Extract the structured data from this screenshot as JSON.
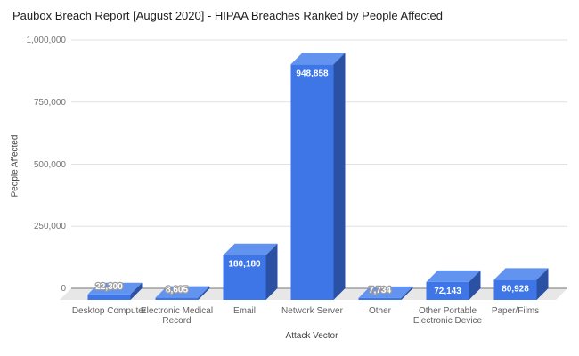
{
  "title": "Paubox Breach Report [August 2020] - HIPAA Breaches Ranked by People Affected",
  "chart_data": {
    "type": "bar",
    "style": "3d-column",
    "title": "Paubox Breach Report [August 2020] - HIPAA Breaches Ranked by People Affected",
    "xlabel": "Attack Vector",
    "ylabel": "People Affected",
    "categories": [
      "Desktop Computer",
      "Electronic Medical Record",
      "Email",
      "Network Server",
      "Other",
      "Other Portable Electronic Device",
      "Paper/Films"
    ],
    "values": [
      22300,
      8605,
      180180,
      948858,
      7734,
      72143,
      80928
    ],
    "value_labels": [
      "22,300",
      "8,605",
      "180,180",
      "948,858",
      "7,734",
      "72,143",
      "80,928"
    ],
    "ylim": [
      0,
      1000000
    ],
    "y_ticks": [
      0,
      250000,
      500000,
      750000,
      1000000
    ],
    "y_tick_labels": [
      "0",
      "250,000",
      "500,000",
      "750,000",
      "1,000,000"
    ],
    "grid": true,
    "legend_position": "none",
    "colors": {
      "bar_front": "#3E76E8",
      "bar_top": "#6193EF",
      "bar_side": "#2A51A3",
      "grid": "#E1E1E1",
      "baseline": "#757575",
      "floor": "#E7E7E7",
      "value_text": "#FFFFFF",
      "title_text": "#212121",
      "axis_text": "#616161"
    }
  }
}
